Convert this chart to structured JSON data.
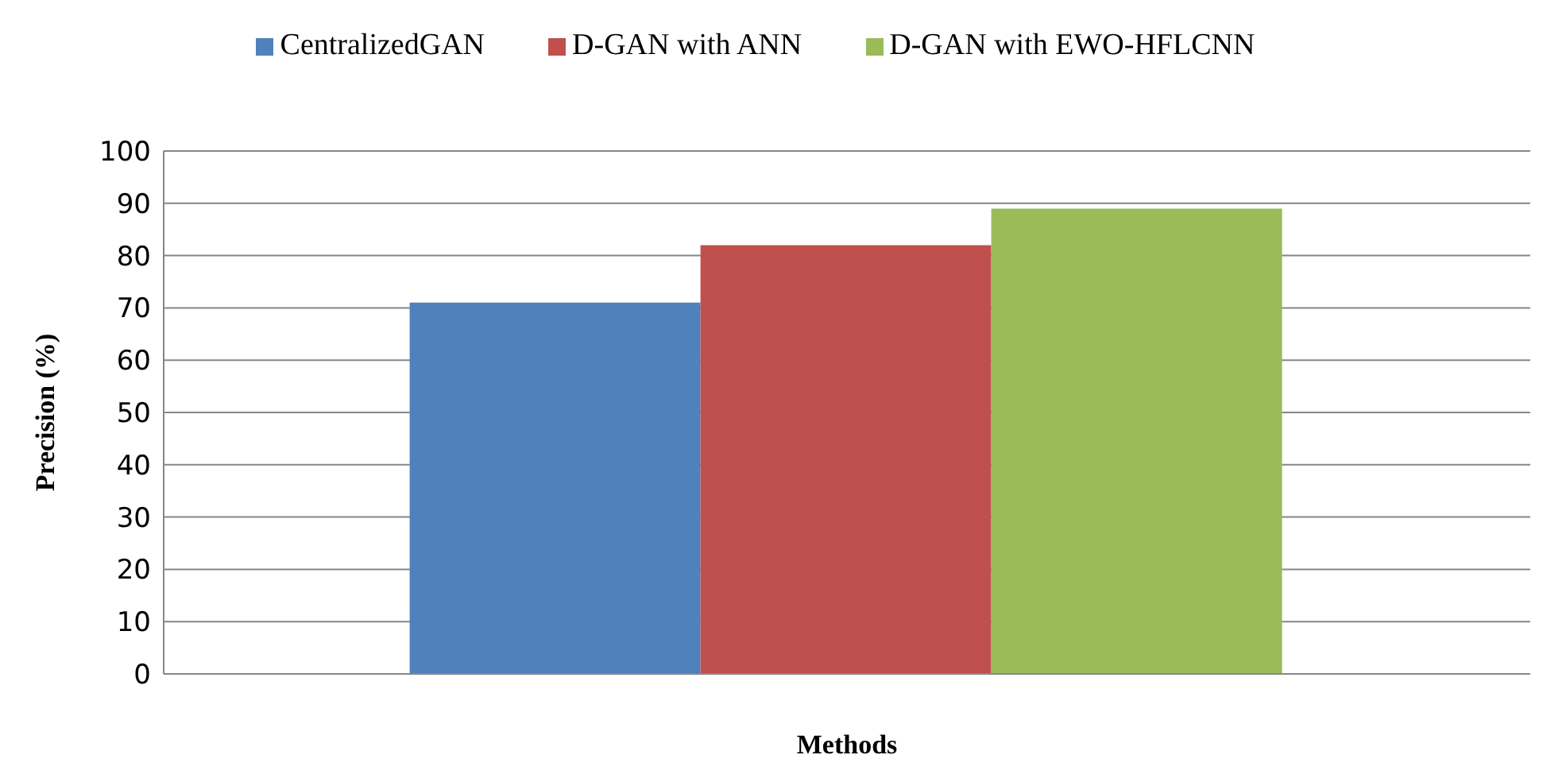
{
  "chart_data": {
    "type": "bar",
    "xlabel": "Methods",
    "ylabel": "Precision (%)",
    "categories": [
      null
    ],
    "series": [
      {
        "name": "CentralizedGAN",
        "color": "#4f81bd",
        "values": [
          71
        ]
      },
      {
        "name": "D-GAN with ANN",
        "color": "#c0504d",
        "values": [
          82
        ]
      },
      {
        "name": "D-GAN with EWO-HFLCNN",
        "color": "#9bbb59",
        "values": [
          89
        ]
      }
    ],
    "ylim": [
      0,
      100
    ],
    "yticks": [
      0,
      10,
      20,
      30,
      40,
      50,
      60,
      70,
      80,
      90,
      100
    ],
    "grid": "y",
    "legend": "top"
  }
}
